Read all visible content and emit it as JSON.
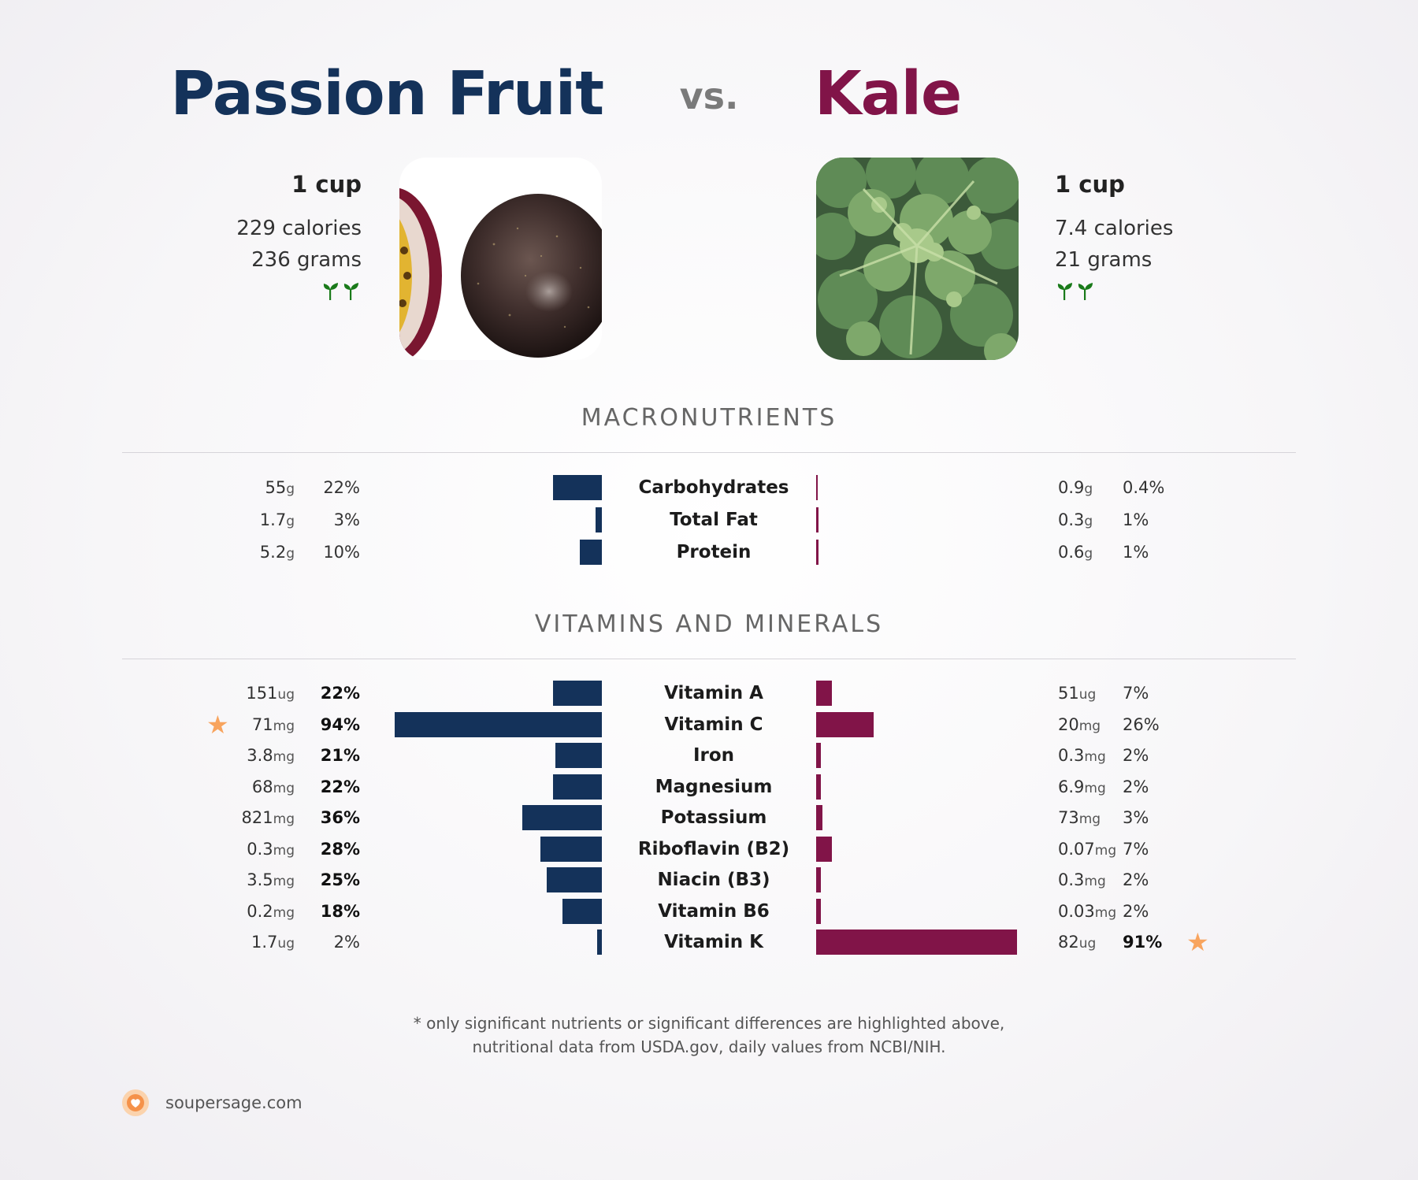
{
  "header": {
    "left_title": "Passion Fruit",
    "vs": "vs.",
    "right_title": "Kale"
  },
  "left_food": {
    "serving": "1 cup",
    "calories": "229 calories",
    "grams": "236 grams",
    "icon": "sprout-icon",
    "image_subject": "passion fruit"
  },
  "right_food": {
    "serving": "1 cup",
    "calories": "7.4 calories",
    "grams": "21 grams",
    "icon": "sprout-icon",
    "image_subject": "kale"
  },
  "sections": {
    "macronutrients": "MACRONUTRIENTS",
    "vitamins": "VITAMINS AND MINERALS"
  },
  "chart_data": {
    "type": "bar",
    "layout": "back-to-back",
    "colors": {
      "left": "#14325a",
      "right": "#811448",
      "star": "#f8a45e"
    },
    "macronutrients": [
      {
        "name": "Carbohydrates",
        "left_amount": "55",
        "left_unit": "g",
        "left_pct": "22%",
        "left_value": 22,
        "left_bold": false,
        "right_amount": "0.9",
        "right_unit": "g",
        "right_pct": "0.4%",
        "right_value": 0.4,
        "right_bold": false
      },
      {
        "name": "Total Fat",
        "left_amount": "1.7",
        "left_unit": "g",
        "left_pct": "3%",
        "left_value": 3,
        "left_bold": false,
        "right_amount": "0.3",
        "right_unit": "g",
        "right_pct": "1%",
        "right_value": 1,
        "right_bold": false
      },
      {
        "name": "Protein",
        "left_amount": "5.2",
        "left_unit": "g",
        "left_pct": "10%",
        "left_value": 10,
        "left_bold": false,
        "right_amount": "0.6",
        "right_unit": "g",
        "right_pct": "1%",
        "right_value": 1,
        "right_bold": false
      }
    ],
    "vitamins": [
      {
        "name": "Vitamin A",
        "left_amount": "151",
        "left_unit": "ug",
        "left_pct": "22%",
        "left_value": 22,
        "left_bold": true,
        "right_amount": "51",
        "right_unit": "ug",
        "right_pct": "7%",
        "right_value": 7,
        "right_bold": false
      },
      {
        "name": "Vitamin C",
        "left_amount": "71",
        "left_unit": "mg",
        "left_pct": "94%",
        "left_value": 94,
        "left_bold": true,
        "left_star": true,
        "right_amount": "20",
        "right_unit": "mg",
        "right_pct": "26%",
        "right_value": 26,
        "right_bold": false
      },
      {
        "name": "Iron",
        "left_amount": "3.8",
        "left_unit": "mg",
        "left_pct": "21%",
        "left_value": 21,
        "left_bold": true,
        "right_amount": "0.3",
        "right_unit": "mg",
        "right_pct": "2%",
        "right_value": 2,
        "right_bold": false
      },
      {
        "name": "Magnesium",
        "left_amount": "68",
        "left_unit": "mg",
        "left_pct": "22%",
        "left_value": 22,
        "left_bold": true,
        "right_amount": "6.9",
        "right_unit": "mg",
        "right_pct": "2%",
        "right_value": 2,
        "right_bold": false
      },
      {
        "name": "Potassium",
        "left_amount": "821",
        "left_unit": "mg",
        "left_pct": "36%",
        "left_value": 36,
        "left_bold": true,
        "right_amount": "73",
        "right_unit": "mg",
        "right_pct": "3%",
        "right_value": 3,
        "right_bold": false
      },
      {
        "name": "Riboflavin (B2)",
        "left_amount": "0.3",
        "left_unit": "mg",
        "left_pct": "28%",
        "left_value": 28,
        "left_bold": true,
        "right_amount": "0.07",
        "right_unit": "mg",
        "right_pct": "7%",
        "right_value": 7,
        "right_bold": false
      },
      {
        "name": "Niacin (B3)",
        "left_amount": "3.5",
        "left_unit": "mg",
        "left_pct": "25%",
        "left_value": 25,
        "left_bold": true,
        "right_amount": "0.3",
        "right_unit": "mg",
        "right_pct": "2%",
        "right_value": 2,
        "right_bold": false
      },
      {
        "name": "Vitamin B6",
        "left_amount": "0.2",
        "left_unit": "mg",
        "left_pct": "18%",
        "left_value": 18,
        "left_bold": true,
        "right_amount": "0.03",
        "right_unit": "mg",
        "right_pct": "2%",
        "right_value": 2,
        "right_bold": false
      },
      {
        "name": "Vitamin K",
        "left_amount": "1.7",
        "left_unit": "ug",
        "left_pct": "2%",
        "left_value": 2,
        "left_bold": false,
        "right_amount": "82",
        "right_unit": "ug",
        "right_pct": "91%",
        "right_value": 91,
        "right_bold": true,
        "right_star": true
      }
    ]
  },
  "footer": {
    "note_line1": "* only significant nutrients or significant differences are highlighted above,",
    "note_line2": "nutritional data from USDA.gov, daily values from NCBI/NIH.",
    "brand": "soupersage.com",
    "brand_icon": "soupersage-logo-icon"
  }
}
